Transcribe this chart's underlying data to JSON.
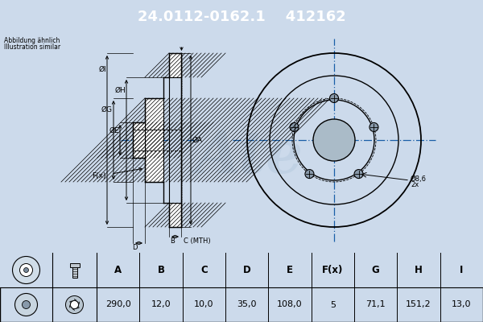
{
  "title_part_number": "24.0112-0162.1",
  "title_ref_number": "412162",
  "title_bg_color": "#1a5fa8",
  "title_text_color": "#ffffff",
  "bg_color": "#ccdaeb",
  "drawing_bg_color": "#ccdaeb",
  "table_header_bg": "#ccdaeb",
  "table_values_bg": "#ffffff",
  "note_line1": "Abbildung ähnlich",
  "note_line2": "Illustration similar",
  "table_headers": [
    "A",
    "B",
    "C",
    "D",
    "E",
    "F(x)",
    "G",
    "H",
    "I"
  ],
  "table_values": [
    "290,0",
    "12,0",
    "10,0",
    "35,0",
    "108,0",
    "5",
    "71,1",
    "151,2",
    "13,0"
  ],
  "bolt_label_line1": "Ø8,6",
  "bolt_label_line2": "2x",
  "dim_labels_left": [
    "ØI",
    "ØG",
    "ØE",
    "ØH",
    "ØA"
  ],
  "dim_label_fx": "F(x)",
  "dim_label_b": "B",
  "dim_label_c": "C (MTH)",
  "dim_label_d": "D",
  "line_color": "#000000",
  "center_line_color": "#1a5fa8",
  "hatch_color": "#555555",
  "watermark_color": "#b8cce0"
}
